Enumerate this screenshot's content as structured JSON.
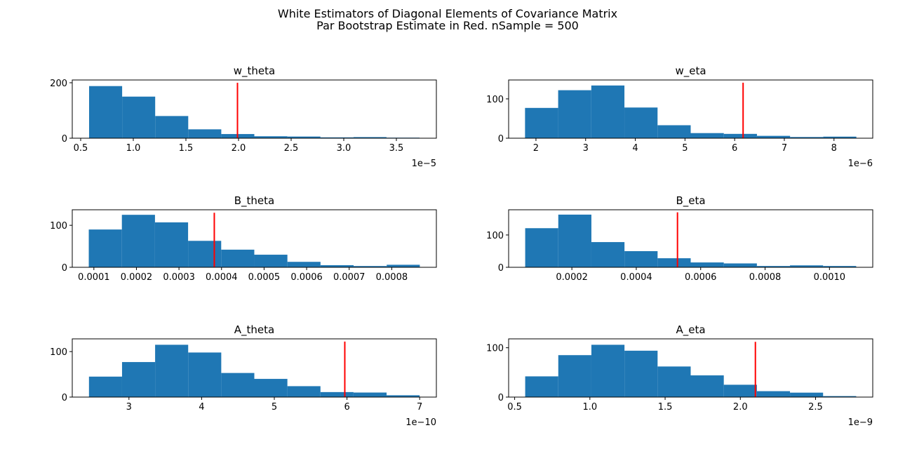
{
  "figure": {
    "title_line1": "White Estimators of Diagonal Elements of Covariance Matrix",
    "title_line2": "Par Bootstrap Estimate in Red. nSample = 500"
  },
  "colors": {
    "bar": "#1f77b4",
    "reference_line": "#ff0000",
    "axes": "#000000"
  },
  "chart_data": [
    {
      "type": "bar",
      "title": "w_theta",
      "bin_edges": [
        0.58,
        0.894,
        1.208,
        1.522,
        1.836,
        2.15,
        2.464,
        2.778,
        3.092,
        3.406,
        3.72
      ],
      "counts": [
        188,
        150,
        80,
        32,
        15,
        7,
        6,
        3,
        4,
        2
      ],
      "reference_value": 1.99,
      "reference_height": 200,
      "xlim": [
        0.42,
        3.88
      ],
      "ylim": [
        0,
        210
      ],
      "xticks": [
        0.5,
        1.0,
        1.5,
        2.0,
        2.5,
        3.0,
        3.5
      ],
      "xtick_labels": [
        "0.5",
        "1.0",
        "1.5",
        "2.0",
        "2.5",
        "3.0",
        "3.5"
      ],
      "yticks": [
        0,
        200
      ],
      "ytick_labels": [
        "0",
        "200"
      ],
      "offset_label": "1e−5"
    },
    {
      "type": "bar",
      "title": "w_eta",
      "bin_edges": [
        1.78,
        2.447,
        3.114,
        3.781,
        4.448,
        5.115,
        5.782,
        6.449,
        7.116,
        7.783,
        8.45
      ],
      "counts": [
        77,
        122,
        134,
        78,
        33,
        13,
        11,
        6,
        3,
        4
      ],
      "reference_value": 6.17,
      "reference_height": 141,
      "xlim": [
        1.45,
        8.78
      ],
      "ylim": [
        0,
        148
      ],
      "xticks": [
        2,
        3,
        4,
        5,
        6,
        7,
        8
      ],
      "xtick_labels": [
        "2",
        "3",
        "4",
        "5",
        "6",
        "7",
        "8"
      ],
      "yticks": [
        0,
        100
      ],
      "ytick_labels": [
        "0",
        "100"
      ],
      "offset_label": "1e−6"
    },
    {
      "type": "bar",
      "title": "B_theta",
      "bin_edges": [
        8.8e-05,
        0.0001658,
        0.0002436,
        0.0003214,
        0.0003992,
        0.000477,
        0.0005548,
        0.0006326,
        0.0007104,
        0.0007882,
        0.000866
      ],
      "counts": [
        90,
        125,
        107,
        63,
        42,
        30,
        13,
        5,
        3,
        6
      ],
      "reference_value": 0.000383,
      "reference_height": 130,
      "xlim": [
        4.92e-05,
        0.0009049
      ],
      "ylim": [
        0,
        137
      ],
      "xticks": [
        0.0001,
        0.0002,
        0.0003,
        0.0004,
        0.0005,
        0.0006,
        0.0007,
        0.0008
      ],
      "xtick_labels": [
        "0.0001",
        "0.0002",
        "0.0003",
        "0.0004",
        "0.0005",
        "0.0006",
        "0.0007",
        "0.0008"
      ],
      "yticks": [
        0,
        100
      ],
      "ytick_labels": [
        "0",
        "100"
      ],
      "offset_label": ""
    },
    {
      "type": "bar",
      "title": "B_eta",
      "bin_edges": [
        5.5e-05,
        0.0001578,
        0.0002606,
        0.0003634,
        0.0004662,
        0.000569,
        0.0006718,
        0.0007746,
        0.0008774,
        0.0009802,
        0.001083
      ],
      "counts": [
        121,
        163,
        78,
        50,
        28,
        15,
        12,
        4,
        6,
        4
      ],
      "reference_value": 0.000528,
      "reference_height": 170,
      "xlim": [
        3.6e-06,
        0.0011344
      ],
      "ylim": [
        0,
        178
      ],
      "xticks": [
        0.0002,
        0.0004,
        0.0006,
        0.0008,
        0.001
      ],
      "xtick_labels": [
        "0.0002",
        "0.0004",
        "0.0006",
        "0.0008",
        "0.0010"
      ],
      "yticks": [
        0,
        100
      ],
      "ytick_labels": [
        "0",
        "100"
      ],
      "offset_label": ""
    },
    {
      "type": "bar",
      "title": "A_theta",
      "bin_edges": [
        2.45,
        2.905,
        3.36,
        3.815,
        4.27,
        4.725,
        5.18,
        5.635,
        6.09,
        6.545,
        7.0
      ],
      "counts": [
        45,
        77,
        115,
        98,
        53,
        40,
        24,
        11,
        10,
        4
      ],
      "reference_value": 5.97,
      "reference_height": 122,
      "xlim": [
        2.22,
        7.23
      ],
      "ylim": [
        0,
        128
      ],
      "xticks": [
        3,
        4,
        5,
        6,
        7
      ],
      "xtick_labels": [
        "3",
        "4",
        "5",
        "6",
        "7"
      ],
      "yticks": [
        0,
        100
      ],
      "ytick_labels": [
        "0",
        "100"
      ],
      "offset_label": "1e−10"
    },
    {
      "type": "bar",
      "title": "A_eta",
      "bin_edges": [
        0.57,
        0.79,
        1.01,
        1.23,
        1.45,
        1.67,
        1.89,
        2.11,
        2.33,
        2.55,
        2.77
      ],
      "counts": [
        42,
        85,
        106,
        94,
        62,
        44,
        25,
        12,
        9,
        2
      ],
      "reference_value": 2.1,
      "reference_height": 112,
      "xlim": [
        0.46,
        2.88
      ],
      "ylim": [
        0,
        118
      ],
      "xticks": [
        0.5,
        1.0,
        1.5,
        2.0,
        2.5
      ],
      "xtick_labels": [
        "0.5",
        "1.0",
        "1.5",
        "2.0",
        "2.5"
      ],
      "yticks": [
        0,
        100
      ],
      "ytick_labels": [
        "0",
        "100"
      ],
      "offset_label": "1e−9"
    }
  ]
}
